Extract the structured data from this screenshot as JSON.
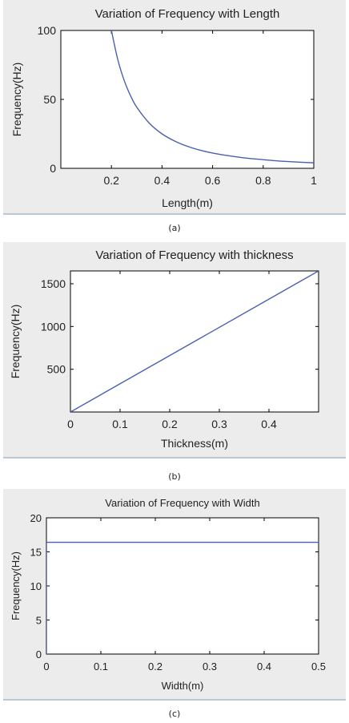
{
  "chart_data": [
    {
      "type": "line",
      "title": "Variation of Frequency with Length",
      "xlabel": "Length(m)",
      "ylabel": "Frequency(Hz)",
      "xlim": [
        0,
        1
      ],
      "ylim": [
        0,
        100
      ],
      "xticks": [
        0.2,
        0.4,
        0.6,
        0.8,
        1
      ],
      "xtick_labels": [
        "0.2",
        "0.4",
        "0.6",
        "0.8",
        "1"
      ],
      "yticks": [
        0,
        50,
        100
      ],
      "ytick_labels": [
        "0",
        "50",
        "100"
      ],
      "grid": false,
      "caption": "(a)",
      "series": [
        {
          "color": "#4a5fb0",
          "x": [
            0.2,
            0.225,
            0.25,
            0.275,
            0.3,
            0.35,
            0.4,
            0.45,
            0.5,
            0.55,
            0.6,
            0.65,
            0.7,
            0.75,
            0.8,
            0.85,
            0.9,
            0.95,
            1.0
          ],
          "y": [
            100,
            79,
            64,
            52.9,
            44.4,
            32.7,
            25,
            19.8,
            16,
            13.2,
            11.1,
            9.5,
            8.2,
            7.1,
            6.3,
            5.5,
            4.9,
            4.4,
            4.0
          ]
        }
      ]
    },
    {
      "type": "line",
      "title": "Variation of Frequency with thickness",
      "xlabel": "Thickness(m)",
      "ylabel": "Frequency(Hz)",
      "xlim": [
        0,
        0.5
      ],
      "ylim": [
        0,
        1650
      ],
      "xticks": [
        0,
        0.1,
        0.2,
        0.3,
        0.4
      ],
      "xtick_labels": [
        "0",
        "0.1",
        "0.2",
        "0.3",
        "0.4"
      ],
      "yticks": [
        500,
        1000,
        1500
      ],
      "ytick_labels": [
        "500",
        "1000",
        "1500"
      ],
      "grid": false,
      "caption": "(b)",
      "series": [
        {
          "color": "#4a5fb0",
          "x": [
            0,
            0.5
          ],
          "y": [
            0,
            1650
          ]
        }
      ]
    },
    {
      "type": "line",
      "title": "Variation of Frequency with Width",
      "xlabel": "Width(m)",
      "ylabel": "Frequency(Hz)",
      "xlim": [
        0,
        0.5
      ],
      "ylim": [
        0,
        20
      ],
      "xticks": [
        0,
        0.1,
        0.2,
        0.3,
        0.4,
        0.5
      ],
      "xtick_labels": [
        "0",
        "0.1",
        "0.2",
        "0.3",
        "0.4",
        "0.5"
      ],
      "yticks": [
        0,
        5,
        10,
        15,
        20
      ],
      "ytick_labels": [
        "0",
        "5",
        "10",
        "15",
        "20"
      ],
      "grid": false,
      "caption": "(c)",
      "series": [
        {
          "color": "#4a5fb0",
          "x": [
            0,
            0,
            0.5
          ],
          "y": [
            0,
            16.4,
            16.4
          ]
        }
      ]
    }
  ]
}
